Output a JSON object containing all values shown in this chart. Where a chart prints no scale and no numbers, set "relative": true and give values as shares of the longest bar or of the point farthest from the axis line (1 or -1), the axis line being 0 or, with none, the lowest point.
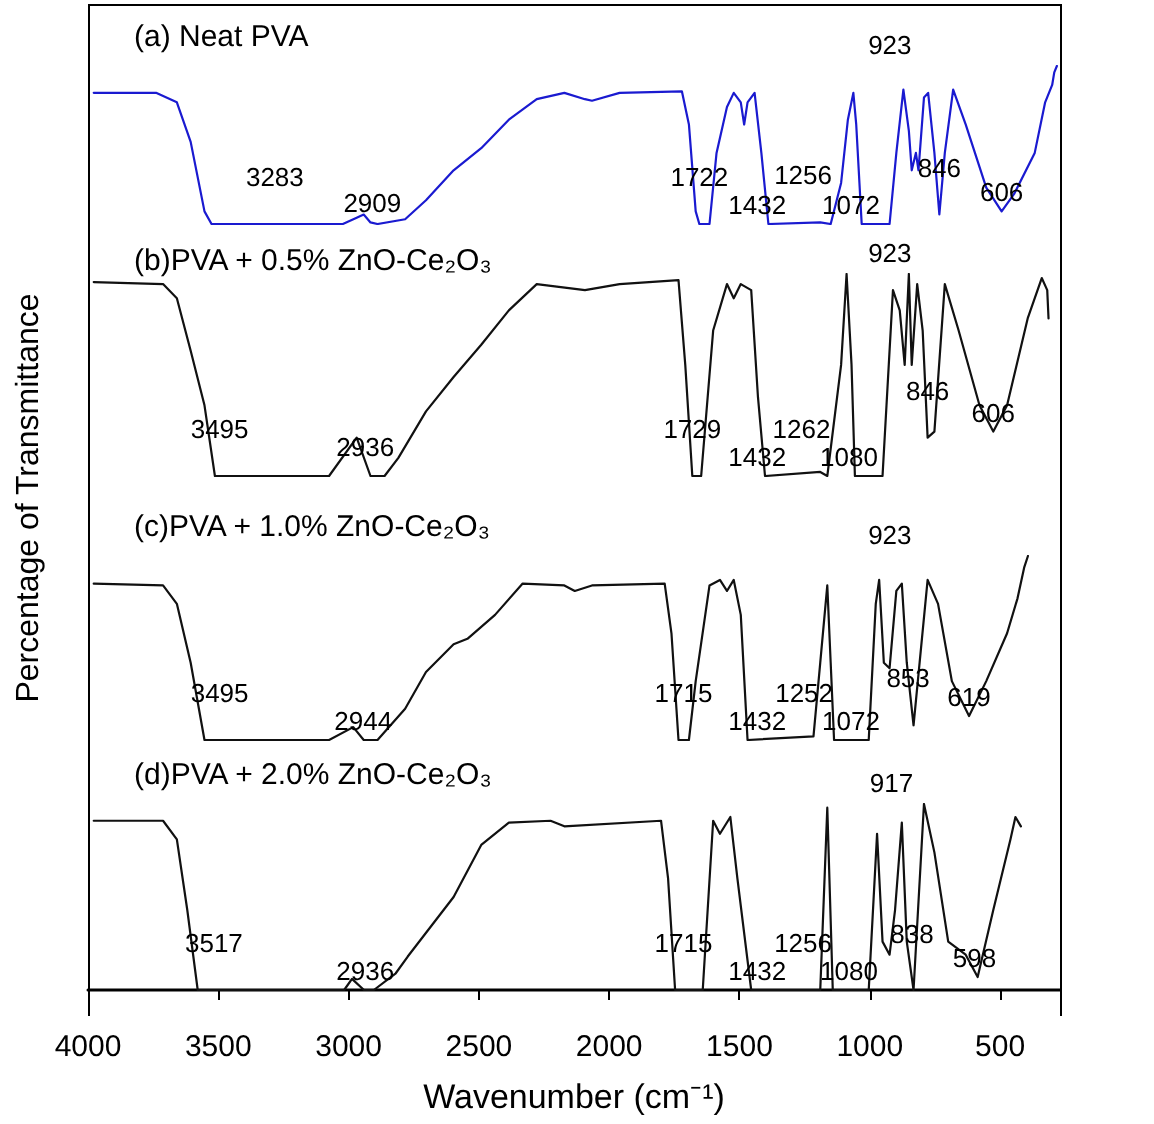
{
  "chart_data": [
    {
      "type": "line",
      "title": "(a) Neat PVA",
      "relative": true,
      "tick_labels": false,
      "xlim": [
        4000,
        270
      ],
      "xticks": [
        4000,
        3500,
        3000,
        2500,
        2000,
        1500,
        1000,
        500
      ],
      "marker": "none",
      "line_style": "solid",
      "series": [
        {
          "color": "#1a1ad0",
          "x": [
            3978,
            3739,
            3659,
            3606,
            3553,
            3526,
            3022,
            2969,
            2942,
            2916,
            2889,
            2783,
            2703,
            2597,
            2491,
            2385,
            2278,
            2172,
            2093,
            2066,
            1960,
            1721,
            1694,
            1668,
            1654,
            1615,
            1588,
            1548,
            1522,
            1495,
            1482,
            1469,
            1442,
            1416,
            1389,
            1190,
            1150,
            1110,
            1084,
            1063,
            1052,
            1031,
            924,
            898,
            871,
            850,
            839,
            823,
            813,
            792,
            776,
            752,
            733,
            712,
            680,
            632,
            553,
            494,
            446,
            367,
            327,
            300,
            292,
            282
          ],
          "values": [
            0.83,
            0.83,
            0.77,
            0.52,
            0.08,
            0,
            0,
            0.04,
            0.06,
            0.01,
            0,
            0.03,
            0.15,
            0.34,
            0.48,
            0.66,
            0.79,
            0.83,
            0.79,
            0.78,
            0.83,
            0.84,
            0.63,
            0.08,
            0,
            0,
            0.45,
            0.74,
            0.83,
            0.77,
            0.63,
            0.77,
            0.83,
            0.45,
            0,
            0.01,
            0,
            0.26,
            0.66,
            0.83,
            0.63,
            0,
            0,
            0.45,
            0.85,
            0.59,
            0.34,
            0.45,
            0.34,
            0.8,
            0.83,
            0.45,
            0.06,
            0.45,
            0.85,
            0.63,
            0.23,
            0.08,
            0.19,
            0.45,
            0.77,
            0.88,
            0.96,
            1
          ]
        }
      ],
      "annotations": [
        {
          "text": "923",
          "x": 923,
          "y": 0.6
        },
        {
          "text": "3283",
          "x": 3283,
          "y": 0
        },
        {
          "text": "2909",
          "x": 2909,
          "y": 0.01
        },
        {
          "text": "1722",
          "x": 1654,
          "y": 0
        },
        {
          "text": "1432",
          "x": 1432,
          "y": 0
        },
        {
          "text": "1256",
          "x": 1256,
          "y": 0.01
        },
        {
          "text": "1072",
          "x": 1072,
          "y": 0
        },
        {
          "text": "846",
          "x": 733,
          "y": 0.06
        },
        {
          "text": "606",
          "x": 494,
          "y": 0.08
        }
      ]
    },
    {
      "type": "line",
      "title": "(b)PVA + 0.5% ZnO-Ce₂O₃",
      "ylabel": "Percentage of Transmittance",
      "relative": true,
      "tick_labels": false,
      "xlim": [
        4000,
        270
      ],
      "xticks": [
        4000,
        3500,
        3000,
        2500,
        2000,
        1500,
        1000,
        500
      ],
      "marker": "none",
      "line_style": "solid",
      "series": [
        {
          "color": "#111111",
          "x": [
            3978,
            3712,
            3659,
            3606,
            3553,
            3513,
            3075,
            2969,
            2916,
            2862,
            2809,
            2703,
            2597,
            2491,
            2385,
            2278,
            2093,
            1960,
            1734,
            1708,
            1681,
            1647,
            1601,
            1548,
            1522,
            1495,
            1455,
            1429,
            1402,
            1190,
            1163,
            1110,
            1089,
            1070,
            1057,
            951,
            911,
            885,
            866,
            850,
            839,
            818,
            797,
            778,
            752,
            712,
            659,
            579,
            526,
            473,
            394,
            340,
            319,
            314
          ],
          "values": [
            0.96,
            0.95,
            0.88,
            0.62,
            0.35,
            0,
            0,
            0.19,
            0,
            0,
            0.09,
            0.32,
            0.49,
            0.65,
            0.82,
            0.95,
            0.92,
            0.95,
            0.97,
            0.55,
            0,
            0,
            0.72,
            0.95,
            0.88,
            0.95,
            0.92,
            0.39,
            0,
            0.02,
            0,
            0.55,
            1,
            0.55,
            0,
            0,
            0.92,
            0.82,
            0.55,
            1,
            0.55,
            0.95,
            0.72,
            0.19,
            0.22,
            0.95,
            0.72,
            0.35,
            0.22,
            0.35,
            0.78,
            0.98,
            0.92,
            0.78
          ]
        }
      ],
      "annotations": [
        {
          "text": "923",
          "x": 923,
          "y": 0.9
        },
        {
          "text": "3495",
          "x": 3495,
          "y": 0
        },
        {
          "text": "2936",
          "x": 2936,
          "y": 0.05
        },
        {
          "text": "1729",
          "x": 1681,
          "y": 0
        },
        {
          "text": "1432",
          "x": 1432,
          "y": 0
        },
        {
          "text": "1262",
          "x": 1262,
          "y": 0
        },
        {
          "text": "1080",
          "x": 1080,
          "y": 0
        },
        {
          "text": "846",
          "x": 778,
          "y": 0.19
        },
        {
          "text": "606",
          "x": 526,
          "y": 0.22
        }
      ]
    },
    {
      "type": "line",
      "title": "(c)PVA + 1.0% ZnO-Ce₂O₃",
      "relative": true,
      "tick_labels": false,
      "xlim": [
        4000,
        270
      ],
      "xticks": [
        4000,
        3500,
        3000,
        2500,
        2000,
        1500,
        1000,
        500
      ],
      "marker": "none",
      "line_style": "solid",
      "series": [
        {
          "color": "#111111",
          "x": [
            3978,
            3712,
            3659,
            3606,
            3553,
            3075,
            2982,
            2942,
            2889,
            2783,
            2703,
            2597,
            2544,
            2438,
            2332,
            2172,
            2132,
            2066,
            1787,
            1761,
            1734,
            1694,
            1668,
            1615,
            1575,
            1548,
            1522,
            1495,
            1469,
            1216,
            1190,
            1163,
            1150,
            1137,
            1004,
            977,
            964,
            946,
            924,
            898,
            877,
            858,
            832,
            778,
            738,
            685,
            619,
            553,
            473,
            433,
            407,
            393
          ],
          "values": [
            0.85,
            0.84,
            0.74,
            0.42,
            0,
            0,
            0.07,
            0,
            0,
            0.17,
            0.37,
            0.52,
            0.55,
            0.68,
            0.85,
            0.84,
            0.81,
            0.84,
            0.85,
            0.58,
            0,
            0,
            0.32,
            0.84,
            0.87,
            0.81,
            0.87,
            0.68,
            0,
            0.02,
            0.42,
            0.84,
            0.42,
            0,
            0,
            0.74,
            0.87,
            0.42,
            0.39,
            0.81,
            0.85,
            0.42,
            0.08,
            0.87,
            0.74,
            0.32,
            0.13,
            0.32,
            0.58,
            0.77,
            0.94,
            1
          ]
        }
      ],
      "annotations": [
        {
          "text": "923",
          "x": 923,
          "y": 0.85
        },
        {
          "text": "3495",
          "x": 3495,
          "y": 0
        },
        {
          "text": "2944",
          "x": 2944,
          "y": 0
        },
        {
          "text": "1715",
          "x": 1715,
          "y": 0
        },
        {
          "text": "1432",
          "x": 1432,
          "y": 0
        },
        {
          "text": "1252",
          "x": 1252,
          "y": 0
        },
        {
          "text": "1072",
          "x": 1072,
          "y": 0
        },
        {
          "text": "853",
          "x": 853,
          "y": 0.08
        },
        {
          "text": "619",
          "x": 619,
          "y": 0.13
        }
      ]
    },
    {
      "type": "line",
      "title": "(d)PVA + 2.0% ZnO-Ce₂O₃",
      "xlabel": "Wavenumber (cm⁻¹)",
      "relative": true,
      "tick_labels": "x",
      "xlim": [
        4000,
        270
      ],
      "xticks": [
        4000,
        3500,
        3000,
        2500,
        2000,
        1500,
        1000,
        500
      ],
      "marker": "none",
      "line_style": "solid",
      "series": [
        {
          "color": "#111111",
          "x": [
            3978,
            3712,
            3659,
            3619,
            3579,
            3017,
            2987,
            2941,
            2903,
            2819,
            2773,
            2597,
            2491,
            2385,
            2225,
            2172,
            1801,
            1774,
            1747,
            1641,
            1601,
            1575,
            1535,
            1508,
            1455,
            1190,
            1163,
            1142,
            1004,
            972,
            951,
            924,
            903,
            877,
            858,
            832,
            792,
            752,
            699,
            632,
            586,
            526,
            460,
            441,
            420
          ],
          "values": [
            0.91,
            0.91,
            0.81,
            0.43,
            0,
            0,
            0.06,
            0,
            0,
            0.09,
            0.18,
            0.5,
            0.78,
            0.9,
            0.91,
            0.88,
            0.91,
            0.6,
            0,
            0,
            0.91,
            0.84,
            0.93,
            0.6,
            0,
            0,
            0.98,
            0,
            0,
            0.84,
            0.26,
            0.19,
            0.43,
            0.9,
            0.26,
            0,
            1,
            0.74,
            0.26,
            0.19,
            0.07,
            0.43,
            0.81,
            0.93,
            0.88
          ]
        }
      ],
      "annotations": [
        {
          "text": "917",
          "x": 917,
          "y": 0.9
        },
        {
          "text": "3517",
          "x": 3517,
          "y": 0
        },
        {
          "text": "2936",
          "x": 2936,
          "y": 0
        },
        {
          "text": "1715",
          "x": 1715,
          "y": 0
        },
        {
          "text": "1432",
          "x": 1432,
          "y": 0
        },
        {
          "text": "1256",
          "x": 1256,
          "y": 0
        },
        {
          "text": "1080",
          "x": 1080,
          "y": 0
        },
        {
          "text": "838",
          "x": 838,
          "y": 0.05
        },
        {
          "text": "598",
          "x": 598,
          "y": 0.07
        }
      ]
    }
  ]
}
